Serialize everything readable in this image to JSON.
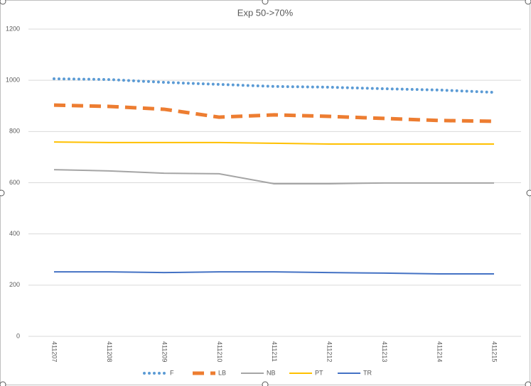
{
  "chart_data": {
    "type": "line",
    "title": "Exp 50->70%",
    "categories": [
      "411207",
      "411208",
      "411209",
      "411210",
      "411211",
      "411212",
      "411213",
      "411214",
      "411215"
    ],
    "series": [
      {
        "name": "F",
        "color": "#5b9bd5",
        "style": "dotted",
        "values": [
          1006,
          1003,
          992,
          984,
          976,
          973,
          967,
          962,
          953
        ]
      },
      {
        "name": "LB",
        "color": "#ed7d31",
        "style": "dashed",
        "values": [
          903,
          898,
          887,
          856,
          865,
          859,
          851,
          843,
          840
        ]
      },
      {
        "name": "NB",
        "color": "#a5a5a5",
        "style": "solid",
        "values": [
          651,
          646,
          637,
          635,
          596,
          596,
          599,
          599,
          599
        ]
      },
      {
        "name": "PT",
        "color": "#ffc000",
        "style": "solid",
        "values": [
          759,
          757,
          757,
          757,
          754,
          751,
          751,
          751,
          751
        ]
      },
      {
        "name": "TR",
        "color": "#4472c4",
        "style": "solid",
        "values": [
          252,
          252,
          249,
          252,
          252,
          249,
          247,
          244,
          244
        ]
      }
    ],
    "ylim": [
      0,
      1200
    ],
    "yticks": [
      0,
      200,
      400,
      600,
      800,
      1000,
      1200
    ],
    "grid": true,
    "legend": "bottom"
  }
}
